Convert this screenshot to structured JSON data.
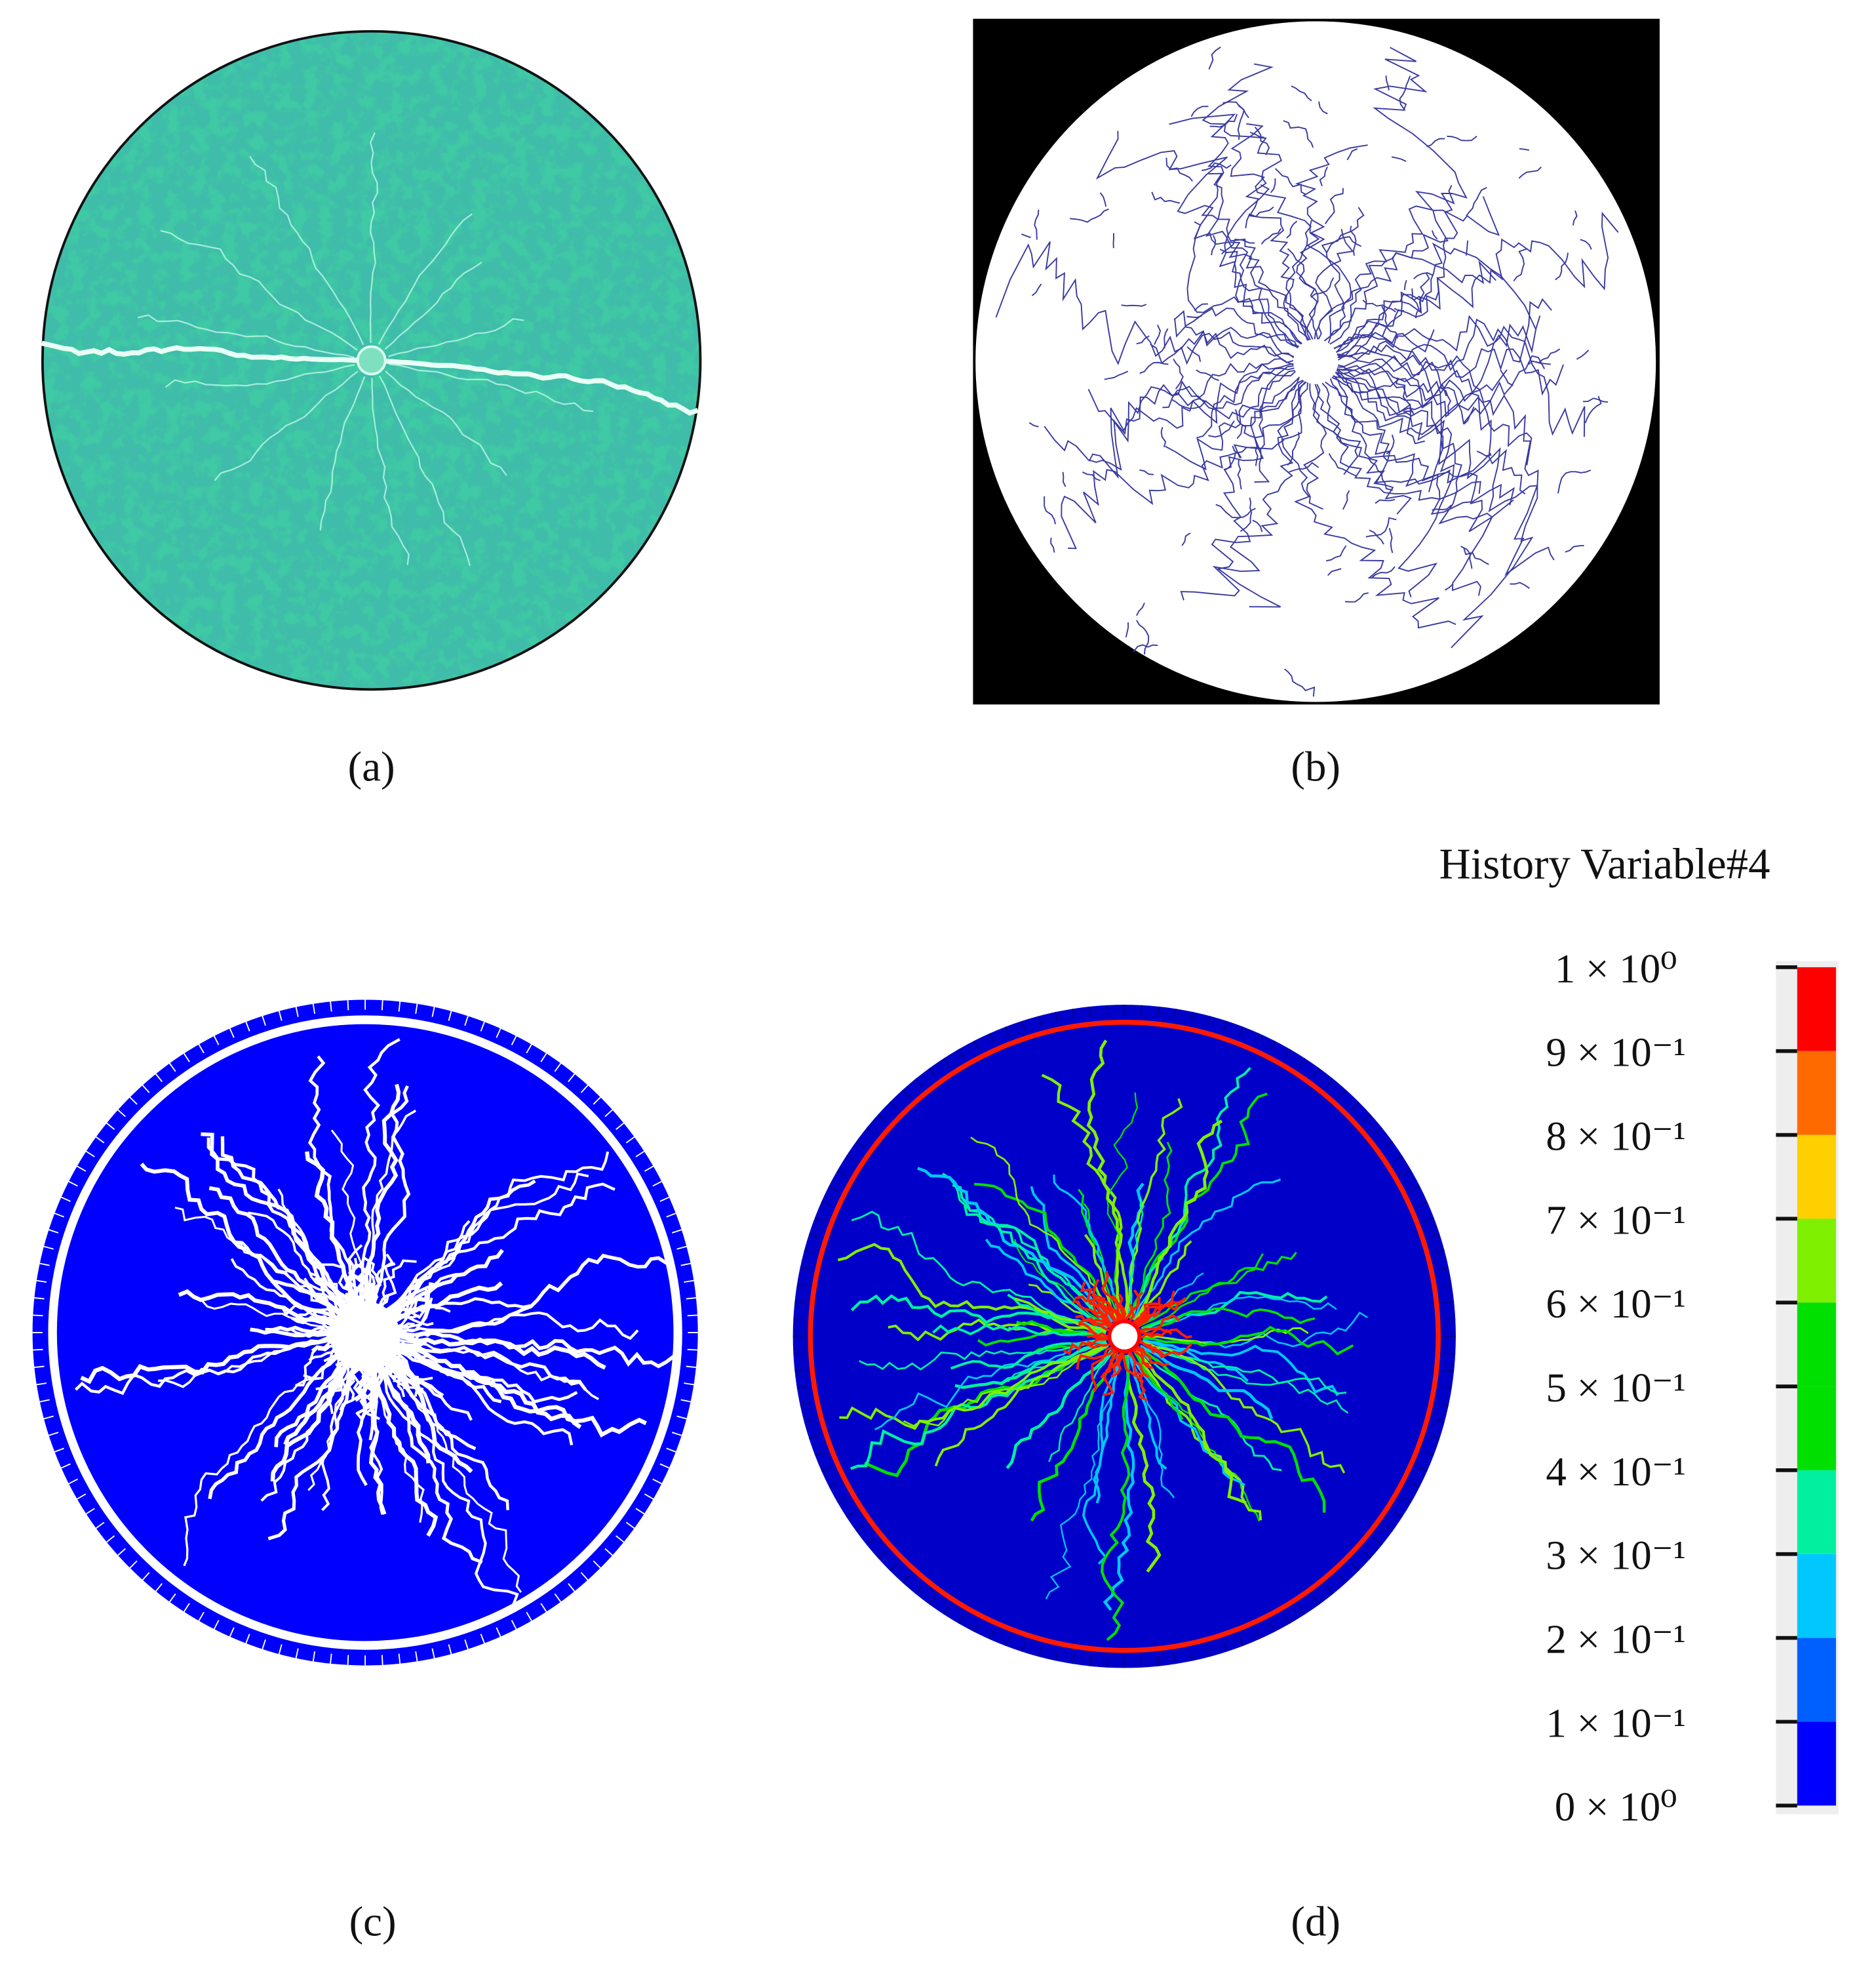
{
  "panels": [
    {
      "label": "(a)"
    },
    {
      "label": "(b)"
    },
    {
      "label": "(c)"
    },
    {
      "label": "(d)"
    }
  ],
  "colorbar": {
    "title": "History Variable#4",
    "ticks": [
      {
        "value": 1,
        "label": "1 × 10⁰"
      },
      {
        "value": 0.9,
        "label": "9 × 10⁻¹"
      },
      {
        "value": 0.8,
        "label": "8 × 10⁻¹"
      },
      {
        "value": 0.7,
        "label": "7 × 10⁻¹"
      },
      {
        "value": 0.6,
        "label": "6 × 10⁻¹"
      },
      {
        "value": 0.5,
        "label": "5 × 10⁻¹"
      },
      {
        "value": 0.4,
        "label": "4 × 10⁻¹"
      },
      {
        "value": 0.3,
        "label": "3 × 10⁻¹"
      },
      {
        "value": 0.2,
        "label": "2 × 10⁻¹"
      },
      {
        "value": 0.1,
        "label": "1 × 10⁻¹"
      },
      {
        "value": 0,
        "label": "0 × 10⁰"
      }
    ],
    "colors": [
      "#ff0000",
      "#ff6a00",
      "#ffd000",
      "#7ff000",
      "#00e000",
      "#00e000",
      "#00f0a0",
      "#00c8ff",
      "#0060ff",
      "#0000ff"
    ]
  }
}
